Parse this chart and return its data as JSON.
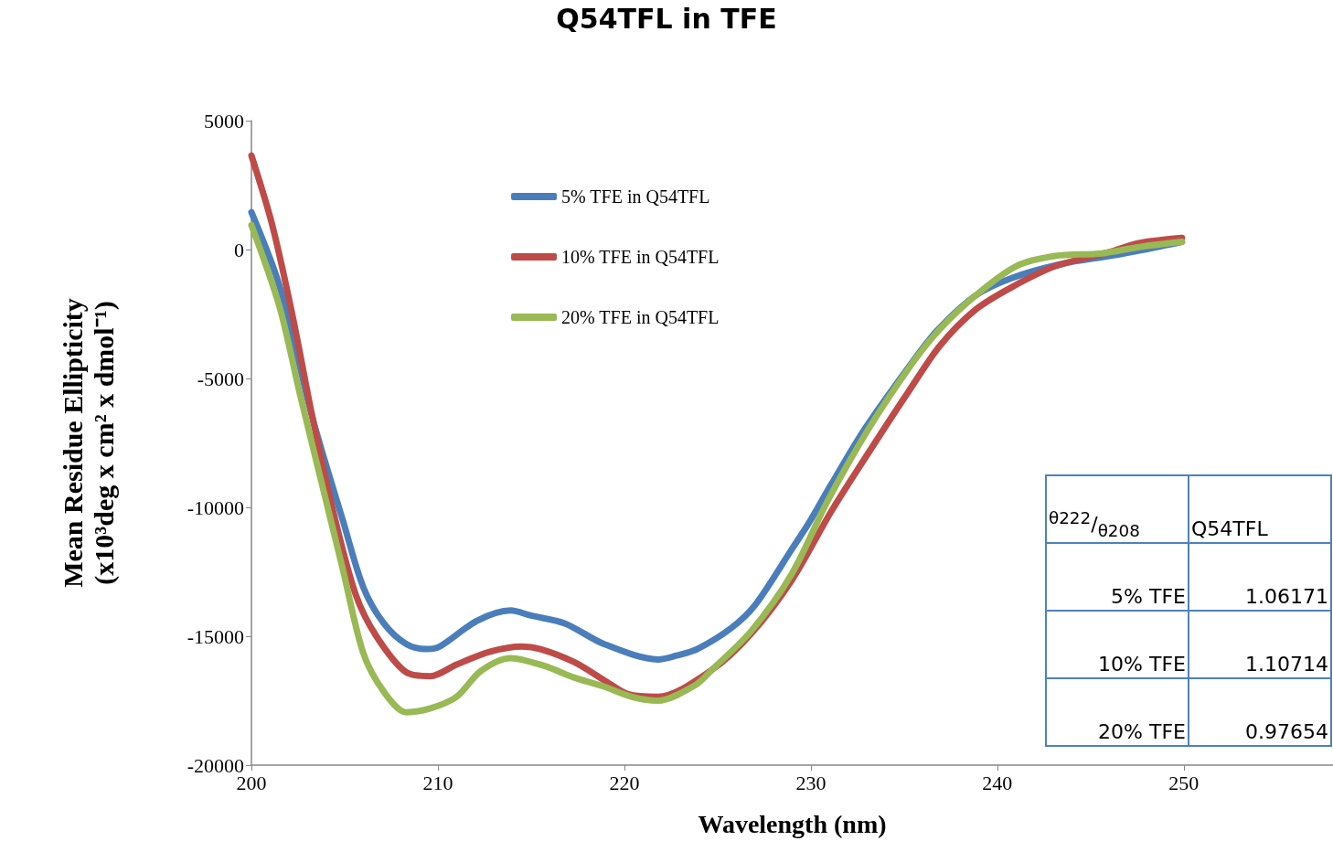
{
  "chart_data": {
    "type": "line",
    "title": "Q54TFL in TFE",
    "xlabel": "Wavelength (nm)",
    "ylabel": "Mean Residue Ellipticity\n(x10³deg x cm² x dmol⁻¹)",
    "xlim": [
      200,
      258
    ],
    "xticks": [
      200,
      210,
      220,
      230,
      240,
      250
    ],
    "ylim": [
      -20000,
      5000
    ],
    "yticks": [
      -20000,
      -15000,
      -10000,
      -5000,
      0,
      5000
    ],
    "grid": false,
    "legend": "top",
    "marker": "none",
    "line_style": "solid",
    "annotations": [
      "$^{θ222}$/$_{θ208}$",
      "Q54TFL",
      "5% TFE",
      "1.06171",
      "10% TFE",
      "1.10714",
      "20% TFE",
      "0.97654"
    ],
    "series": [
      {
        "name": "5% TFE in Q54TFL",
        "color": "#4a7ebb",
        "x": [
          200,
          201.5,
          203.3,
          204.9,
          206,
          207.1,
          208.3,
          209.4,
          210.1,
          212.1,
          213.9,
          215,
          216.8,
          218.9,
          221.8,
          222.8,
          223.9,
          225.7,
          227,
          229,
          229.9,
          231.1,
          232.9,
          235.2,
          236.7,
          238.8,
          240.8,
          243.5,
          246,
          247.9,
          249.9
        ],
        "values": [
          1450,
          -1400,
          -6600,
          -10500,
          -13100,
          -14500,
          -15300,
          -15500,
          -15400,
          -14400,
          -14000,
          -14200,
          -14500,
          -15300,
          -15900,
          -15750,
          -15500,
          -14700,
          -13800,
          -11600,
          -10600,
          -9100,
          -6950,
          -4600,
          -3200,
          -1800,
          -1100,
          -550,
          -250,
          0,
          300
        ]
      },
      {
        "name": "10% TFE in Q54TFL",
        "color": "#be4b48",
        "x": [
          200,
          201.1,
          202.2,
          203.3,
          204.5,
          205.6,
          206.7,
          208.3,
          209.6,
          211,
          212.8,
          214.5,
          215.5,
          217.3,
          218.9,
          220.2,
          221.8,
          224.7,
          226.8,
          229,
          231.1,
          233.3,
          235.2,
          236.9,
          238.8,
          240.8,
          243.1,
          246,
          247.6,
          249.9
        ],
        "values": [
          3650,
          1000,
          -2550,
          -6600,
          -10500,
          -13400,
          -15000,
          -16400,
          -16550,
          -16100,
          -15600,
          -15400,
          -15500,
          -16000,
          -16700,
          -17250,
          -17350,
          -16300,
          -14900,
          -12800,
          -10150,
          -7650,
          -5550,
          -3750,
          -2350,
          -1450,
          -650,
          -100,
          250,
          450
        ]
      },
      {
        "name": "20% TFE in Q54TFL",
        "color": "#98b954",
        "x": [
          200,
          201.5,
          202.6,
          203.8,
          204.9,
          206,
          207.1,
          208.3,
          209.6,
          211,
          212.3,
          213.9,
          215.7,
          217.3,
          218.9,
          220.4,
          221.8,
          223.8,
          224.7,
          226.8,
          229,
          230.9,
          233.1,
          235.4,
          236.9,
          238.8,
          241,
          243.1,
          245.6,
          247.6,
          249.9
        ],
        "values": [
          950,
          -2200,
          -5600,
          -9150,
          -12400,
          -15650,
          -17150,
          -17950,
          -17800,
          -17350,
          -16350,
          -15850,
          -16150,
          -16600,
          -16950,
          -17350,
          -17500,
          -16900,
          -16300,
          -14800,
          -12550,
          -9750,
          -6950,
          -4450,
          -3100,
          -1800,
          -650,
          -250,
          -150,
          100,
          300
        ]
      }
    ]
  }
}
